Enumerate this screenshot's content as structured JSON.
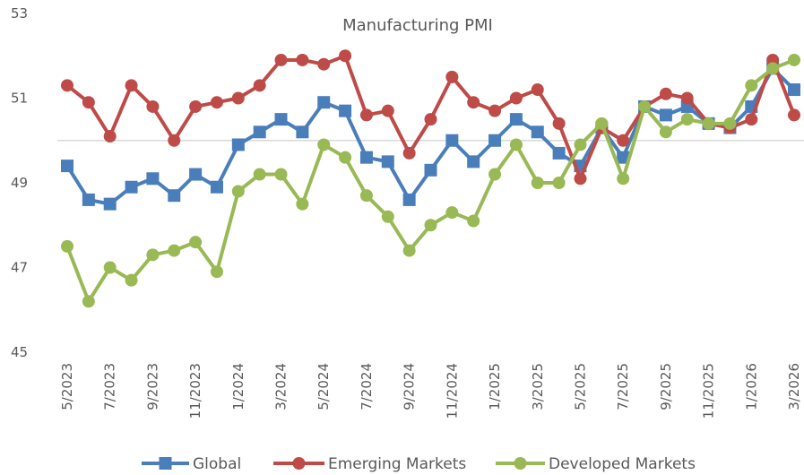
{
  "chart_data": {
    "type": "line",
    "title": "Manufacturing PMI",
    "categories": [
      "5/2023",
      null,
      "7/2023",
      null,
      "9/2023",
      null,
      "11/2023",
      null,
      "1/2024",
      null,
      "3/2024",
      null,
      "5/2024",
      null,
      "7/2024",
      null,
      "9/2024",
      null,
      "11/2024",
      null,
      "1/2025",
      null,
      "3/2025",
      null,
      "5/2025",
      null,
      "7/2025",
      null,
      "9/2025",
      null,
      "11/2025",
      null,
      "1/2026",
      null,
      "3/2026"
    ],
    "series": [
      {
        "name": "Global",
        "color": "#4a7ebb",
        "marker": "square",
        "values": [
          49.4,
          48.6,
          48.5,
          48.9,
          49.1,
          48.7,
          49.2,
          48.9,
          49.9,
          50.2,
          50.5,
          50.2,
          50.9,
          50.7,
          49.6,
          49.5,
          48.6,
          49.3,
          50.0,
          49.5,
          50.0,
          50.5,
          50.2,
          49.7,
          49.4,
          50.3,
          49.6,
          50.8,
          50.6,
          50.8,
          50.4,
          50.3,
          50.8,
          51.7,
          51.2
        ]
      },
      {
        "name": "Emerging Markets",
        "color": "#be4b48",
        "marker": "circle",
        "values": [
          51.3,
          50.9,
          50.1,
          51.3,
          50.8,
          50.0,
          50.8,
          50.9,
          51.0,
          51.3,
          51.9,
          51.9,
          51.8,
          52.0,
          50.6,
          50.7,
          49.7,
          50.5,
          51.5,
          50.9,
          50.7,
          51.0,
          51.2,
          50.4,
          49.1,
          50.3,
          50.0,
          50.8,
          51.1,
          51.0,
          50.4,
          50.3,
          50.5,
          51.9,
          50.6
        ]
      },
      {
        "name": "Developed Markets",
        "color": "#98b954",
        "marker": "circle",
        "values": [
          47.5,
          46.2,
          47.0,
          46.7,
          47.3,
          47.4,
          47.6,
          46.9,
          48.8,
          49.2,
          49.2,
          48.5,
          49.9,
          49.6,
          48.7,
          48.2,
          47.4,
          48.0,
          48.3,
          48.1,
          49.2,
          49.9,
          49.0,
          49.0,
          49.9,
          50.4,
          49.1,
          50.8,
          50.2,
          50.5,
          50.4,
          50.4,
          51.3,
          51.7,
          51.9
        ]
      }
    ],
    "ylim": [
      45,
      53
    ],
    "yticks": [
      45,
      47,
      49,
      51,
      53
    ],
    "reference_line": 50,
    "legend": "bottom"
  }
}
